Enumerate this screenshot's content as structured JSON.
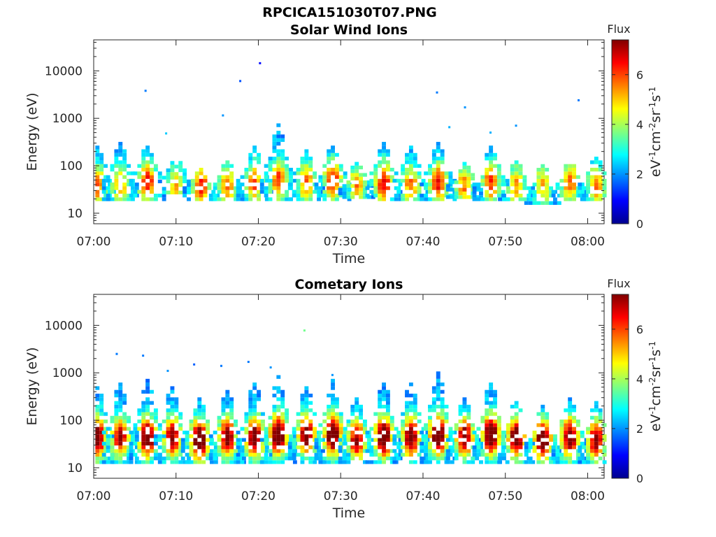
{
  "figure": {
    "title": "RPCICA151030T07.PNG"
  },
  "chart_data": [
    {
      "type": "heatmap",
      "title": "Solar Wind Ions",
      "xlabel": "Time",
      "ylabel": "Energy (eV)",
      "x_ticks": [
        "07:00",
        "07:10",
        "07:20",
        "07:30",
        "07:40",
        "07:50",
        "08:00"
      ],
      "y_ticks": [
        "10",
        "100",
        "1000",
        "10000"
      ],
      "y_scale": "log",
      "x_range": [
        "07:00",
        "08:02"
      ],
      "y_range": [
        6,
        45000
      ],
      "colorbar": {
        "label": "Flux",
        "unit": "eV-1cm-2sr-1s-1",
        "range": [
          0,
          7.4
        ],
        "ticks": [
          "0",
          "2",
          "4",
          "6"
        ]
      },
      "bursts": [
        {
          "t": 0.2,
          "e": 35,
          "lo": 18,
          "hi": 250,
          "peak": 3.8
        },
        {
          "t": 3.0,
          "e": 35,
          "lo": 18,
          "hi": 300,
          "peak": 3.4
        },
        {
          "t": 6.3,
          "e": 40,
          "lo": 18,
          "hi": 300,
          "peak": 4.6
        },
        {
          "t": 9.8,
          "e": 35,
          "lo": 25,
          "hi": 150,
          "peak": 3.0
        },
        {
          "t": 12.8,
          "e": 35,
          "lo": 18,
          "hi": 80,
          "peak": 4.4
        },
        {
          "t": 16.0,
          "e": 35,
          "lo": 18,
          "hi": 120,
          "peak": 3.6
        },
        {
          "t": 19.3,
          "e": 40,
          "lo": 18,
          "hi": 250,
          "peak": 4.0
        },
        {
          "t": 22.2,
          "e": 45,
          "lo": 18,
          "hi": 700,
          "peak": 4.2
        },
        {
          "t": 25.6,
          "e": 40,
          "lo": 18,
          "hi": 200,
          "peak": 3.8
        },
        {
          "t": 28.8,
          "e": 45,
          "lo": 18,
          "hi": 300,
          "peak": 4.7
        },
        {
          "t": 31.7,
          "e": 35,
          "lo": 20,
          "hi": 120,
          "peak": 3.4
        },
        {
          "t": 35.0,
          "e": 40,
          "lo": 18,
          "hi": 300,
          "peak": 4.8
        },
        {
          "t": 38.3,
          "e": 35,
          "lo": 18,
          "hi": 250,
          "peak": 3.8
        },
        {
          "t": 41.6,
          "e": 40,
          "lo": 18,
          "hi": 300,
          "peak": 4.5
        },
        {
          "t": 44.8,
          "e": 35,
          "lo": 20,
          "hi": 120,
          "peak": 3.6
        },
        {
          "t": 48.0,
          "e": 40,
          "lo": 18,
          "hi": 250,
          "peak": 4.2
        },
        {
          "t": 51.1,
          "e": 35,
          "lo": 18,
          "hi": 120,
          "peak": 3.4
        },
        {
          "t": 54.3,
          "e": 35,
          "lo": 15,
          "hi": 100,
          "peak": 3.2
        },
        {
          "t": 57.6,
          "e": 40,
          "lo": 18,
          "hi": 120,
          "peak": 3.8
        },
        {
          "t": 60.8,
          "e": 35,
          "lo": 18,
          "hi": 150,
          "peak": 3.6
        }
      ],
      "points": [
        {
          "t": 6.3,
          "e": 3800,
          "v": 1.8
        },
        {
          "t": 17.8,
          "e": 6100,
          "v": 1.5
        },
        {
          "t": 20.2,
          "e": 14500,
          "v": 1.0
        },
        {
          "t": 15.7,
          "e": 1150,
          "v": 2.0
        },
        {
          "t": 41.7,
          "e": 3500,
          "v": 1.8
        },
        {
          "t": 45.1,
          "e": 1700,
          "v": 2.0
        },
        {
          "t": 51.3,
          "e": 700,
          "v": 2.0
        },
        {
          "t": 58.9,
          "e": 2400,
          "v": 1.8
        },
        {
          "t": 48.2,
          "e": 500,
          "v": 2.2
        },
        {
          "t": 43.2,
          "e": 650,
          "v": 2.2
        },
        {
          "t": 8.8,
          "e": 480,
          "v": 2.4
        }
      ]
    },
    {
      "type": "heatmap",
      "title": "Cometary Ions",
      "xlabel": "Time",
      "ylabel": "Energy (eV)",
      "x_ticks": [
        "07:00",
        "07:10",
        "07:20",
        "07:30",
        "07:40",
        "07:50",
        "08:00"
      ],
      "y_ticks": [
        "10",
        "100",
        "1000",
        "10000"
      ],
      "y_scale": "log",
      "x_range": [
        "07:00",
        "08:02"
      ],
      "y_range": [
        6,
        45000
      ],
      "colorbar": {
        "label": "Flux",
        "unit": "eV-1cm-2sr-1s-1",
        "range": [
          0,
          7.4
        ],
        "ticks": [
          "0",
          "2",
          "4",
          "6"
        ]
      },
      "bursts": [
        {
          "t": 0.2,
          "e": 40,
          "lo": 12,
          "hi": 500,
          "peak": 6.2
        },
        {
          "t": 3.0,
          "e": 40,
          "lo": 12,
          "hi": 600,
          "peak": 5.2
        },
        {
          "t": 6.3,
          "e": 40,
          "lo": 12,
          "hi": 700,
          "peak": 6.4
        },
        {
          "t": 9.3,
          "e": 40,
          "lo": 12,
          "hi": 500,
          "peak": 5.6
        },
        {
          "t": 12.6,
          "e": 35,
          "lo": 12,
          "hi": 300,
          "peak": 6.8
        },
        {
          "t": 16.0,
          "e": 40,
          "lo": 12,
          "hi": 400,
          "peak": 5.8
        },
        {
          "t": 19.3,
          "e": 40,
          "lo": 12,
          "hi": 600,
          "peak": 6.2
        },
        {
          "t": 22.2,
          "e": 45,
          "lo": 12,
          "hi": 800,
          "peak": 6.9
        },
        {
          "t": 25.6,
          "e": 45,
          "lo": 12,
          "hi": 550,
          "peak": 6.0
        },
        {
          "t": 28.8,
          "e": 45,
          "lo": 12,
          "hi": 700,
          "peak": 6.6
        },
        {
          "t": 31.7,
          "e": 35,
          "lo": 12,
          "hi": 300,
          "peak": 5.4
        },
        {
          "t": 35.0,
          "e": 40,
          "lo": 12,
          "hi": 600,
          "peak": 6.7
        },
        {
          "t": 38.3,
          "e": 40,
          "lo": 12,
          "hi": 600,
          "peak": 6.0
        },
        {
          "t": 41.6,
          "e": 45,
          "lo": 12,
          "hi": 900,
          "peak": 6.8
        },
        {
          "t": 44.8,
          "e": 40,
          "lo": 12,
          "hi": 300,
          "peak": 5.8
        },
        {
          "t": 48.0,
          "e": 45,
          "lo": 12,
          "hi": 600,
          "peak": 6.6
        },
        {
          "t": 51.1,
          "e": 40,
          "lo": 12,
          "hi": 300,
          "peak": 6.2
        },
        {
          "t": 54.3,
          "e": 35,
          "lo": 12,
          "hi": 200,
          "peak": 6.5
        },
        {
          "t": 57.6,
          "e": 40,
          "lo": 12,
          "hi": 300,
          "peak": 6.1
        },
        {
          "t": 60.8,
          "e": 35,
          "lo": 12,
          "hi": 250,
          "peak": 5.6
        }
      ],
      "points": [
        {
          "t": 2.8,
          "e": 2500,
          "v": 1.8
        },
        {
          "t": 6.0,
          "e": 2300,
          "v": 1.8
        },
        {
          "t": 12.2,
          "e": 1500,
          "v": 1.6
        },
        {
          "t": 15.5,
          "e": 1400,
          "v": 1.8
        },
        {
          "t": 18.8,
          "e": 1700,
          "v": 1.8
        },
        {
          "t": 25.6,
          "e": 7800,
          "v": 3.6
        },
        {
          "t": 21.5,
          "e": 1300,
          "v": 2.0
        },
        {
          "t": 29.0,
          "e": 900,
          "v": 2.0
        },
        {
          "t": 9.0,
          "e": 1100,
          "v": 2.0
        }
      ]
    }
  ]
}
